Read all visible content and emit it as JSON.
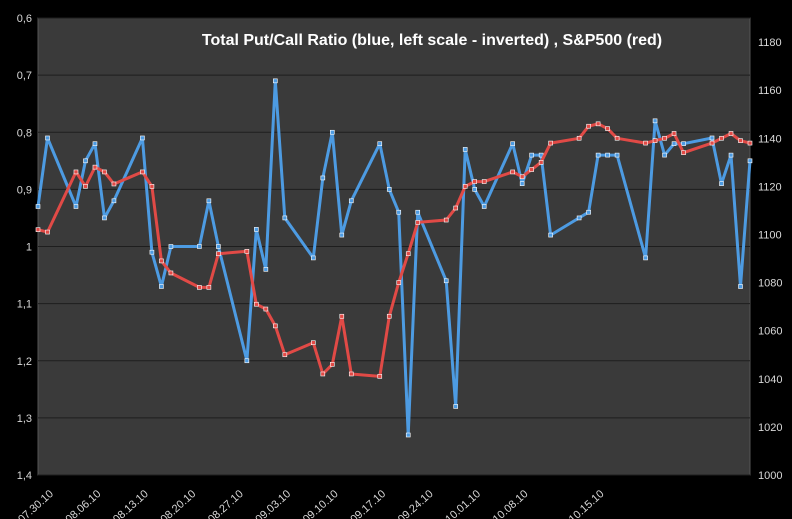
{
  "chart_data": {
    "type": "line",
    "title": "Total Put/Call Ratio (blue, left scale - inverted) , S&P500 (red)",
    "x_tick_labels": [
      "07.30.10",
      "08.06.10",
      "08.13.10",
      "08.20.10",
      "08.27.10",
      "09.03.10",
      "09.10.10",
      "09.17.10",
      "09.24.10",
      "10.01.10",
      "10.08.10",
      "10.15.10"
    ],
    "left_axis": {
      "inverted": true,
      "ylim": [
        0.6,
        1.4
      ],
      "tick_labels": [
        "0,6",
        "0,7",
        "0,8",
        "0,9",
        "1",
        "1,1",
        "1,2",
        "1,3",
        "1,4"
      ],
      "tick_values": [
        0.6,
        0.7,
        0.8,
        0.9,
        1.0,
        1.1,
        1.2,
        1.3,
        1.4
      ]
    },
    "right_axis": {
      "ylim": [
        1000,
        1190
      ],
      "tick_labels": [
        "1000",
        "1020",
        "1040",
        "1060",
        "1080",
        "1100",
        "1120",
        "1140",
        "1160",
        "1180"
      ],
      "tick_values": [
        1000,
        1020,
        1040,
        1060,
        1080,
        1100,
        1120,
        1140,
        1160,
        1180
      ]
    },
    "grid": true,
    "colors": {
      "background": "#000000",
      "plot_area": "#3a3a3a",
      "grid": "#1e1e1e",
      "put_call": "#4d9be2",
      "sp500": "#e14a46"
    },
    "series": [
      {
        "axis": "left",
        "color": "#4d9be2",
        "x": [
          0,
          1,
          4,
          5,
          6,
          7,
          8,
          11,
          12,
          13,
          14,
          17,
          18,
          19,
          22,
          23,
          24,
          25,
          26,
          29,
          30,
          31,
          32,
          33,
          36,
          37,
          38,
          39,
          40,
          43,
          44,
          45,
          46,
          47,
          50,
          51,
          52,
          53,
          54,
          57,
          58,
          59,
          60,
          61,
          64,
          65,
          66,
          67,
          68,
          71,
          72,
          73,
          74,
          75
        ],
        "values": [
          0.93,
          0.81,
          0.93,
          0.85,
          0.82,
          0.95,
          0.92,
          0.81,
          1.01,
          1.07,
          1.0,
          1.0,
          0.92,
          1.0,
          1.2,
          0.97,
          1.04,
          0.71,
          0.95,
          1.02,
          0.88,
          0.8,
          0.98,
          0.92,
          0.82,
          0.9,
          0.94,
          1.33,
          0.94,
          1.06,
          1.28,
          0.83,
          0.9,
          0.93,
          0.82,
          0.89,
          0.84,
          0.84,
          0.98,
          0.95,
          0.94,
          0.84,
          0.84,
          0.84,
          1.02,
          0.78,
          0.84,
          0.82,
          0.82,
          0.81,
          0.89,
          0.84,
          1.07,
          0.85
        ]
      },
      {
        "axis": "right",
        "color": "#e14a46",
        "x": [
          0,
          1,
          4,
          5,
          6,
          7,
          8,
          11,
          12,
          13,
          14,
          17,
          18,
          19,
          22,
          23,
          24,
          25,
          26,
          29,
          30,
          31,
          32,
          33,
          36,
          37,
          38,
          39,
          40,
          43,
          44,
          45,
          46,
          47,
          50,
          51,
          52,
          53,
          54,
          57,
          58,
          59,
          60,
          61,
          64,
          65,
          66,
          67,
          68,
          71,
          72,
          73,
          74,
          75
        ],
        "values": [
          1102,
          1101,
          1126,
          1120,
          1128,
          1126,
          1121,
          1126,
          1120,
          1089,
          1084,
          1078,
          1078,
          1092,
          1093,
          1071,
          1069,
          1062,
          1050,
          1055,
          1042,
          1046,
          1066,
          1042,
          1041,
          1066,
          1080,
          1092,
          1105,
          1106,
          1111,
          1120,
          1122,
          1122,
          1126,
          1124,
          1127,
          1130,
          1138,
          1140,
          1145,
          1146,
          1144,
          1140,
          1138,
          1139,
          1140,
          1142,
          1134,
          1138,
          1140,
          1142,
          1139,
          1138
        ]
      }
    ]
  }
}
